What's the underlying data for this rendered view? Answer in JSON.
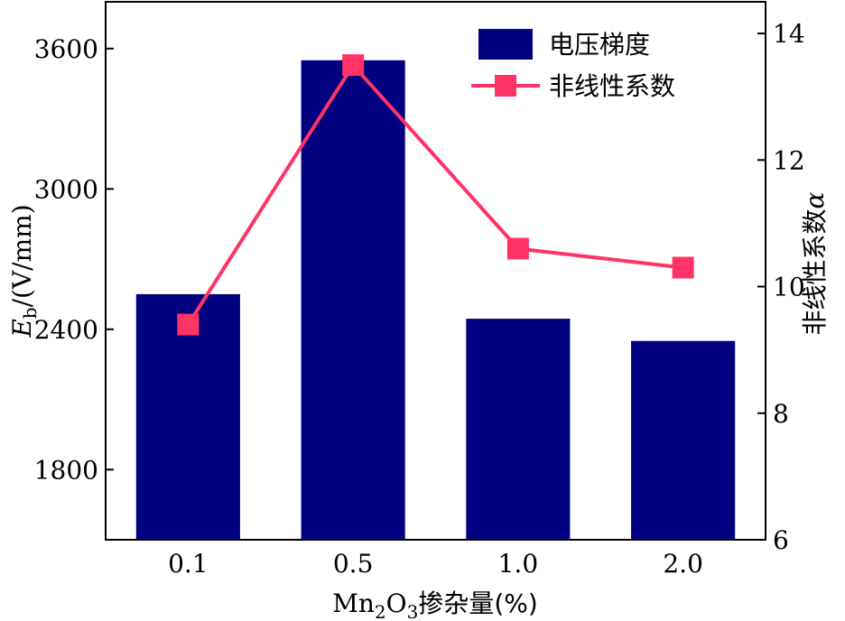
{
  "chart_data": {
    "type": "bar+line",
    "categories": [
      "0.1",
      "0.5",
      "1.0",
      "2.0"
    ],
    "xlabel": {
      "main": "Mn",
      "sub1": "2",
      "mid": "O",
      "sub2": "3",
      "rest": "掺杂量(%)"
    },
    "ylabel_left": {
      "main": "E",
      "sub": "b",
      "rest": "/(V/mm)"
    },
    "ylabel_right": {
      "text": "非线性系数",
      "symbol": "α"
    },
    "ylim_left": [
      1500,
      3800
    ],
    "ylim_right": [
      6,
      14.5
    ],
    "yticks_left": [
      1800,
      2400,
      3000,
      3600
    ],
    "yticks_right": [
      6,
      8,
      10,
      12,
      14
    ],
    "series": [
      {
        "name": "电压梯度",
        "type": "bar",
        "axis": "left",
        "color": "#000080",
        "values": [
          2550,
          3550,
          2445,
          2350
        ]
      },
      {
        "name": "非线性系数",
        "type": "line",
        "axis": "right",
        "color": "#ff3366",
        "marker": "square",
        "values": [
          9.4,
          13.5,
          10.6,
          10.3
        ]
      }
    ],
    "legend_position": "top-right",
    "grid": false
  }
}
